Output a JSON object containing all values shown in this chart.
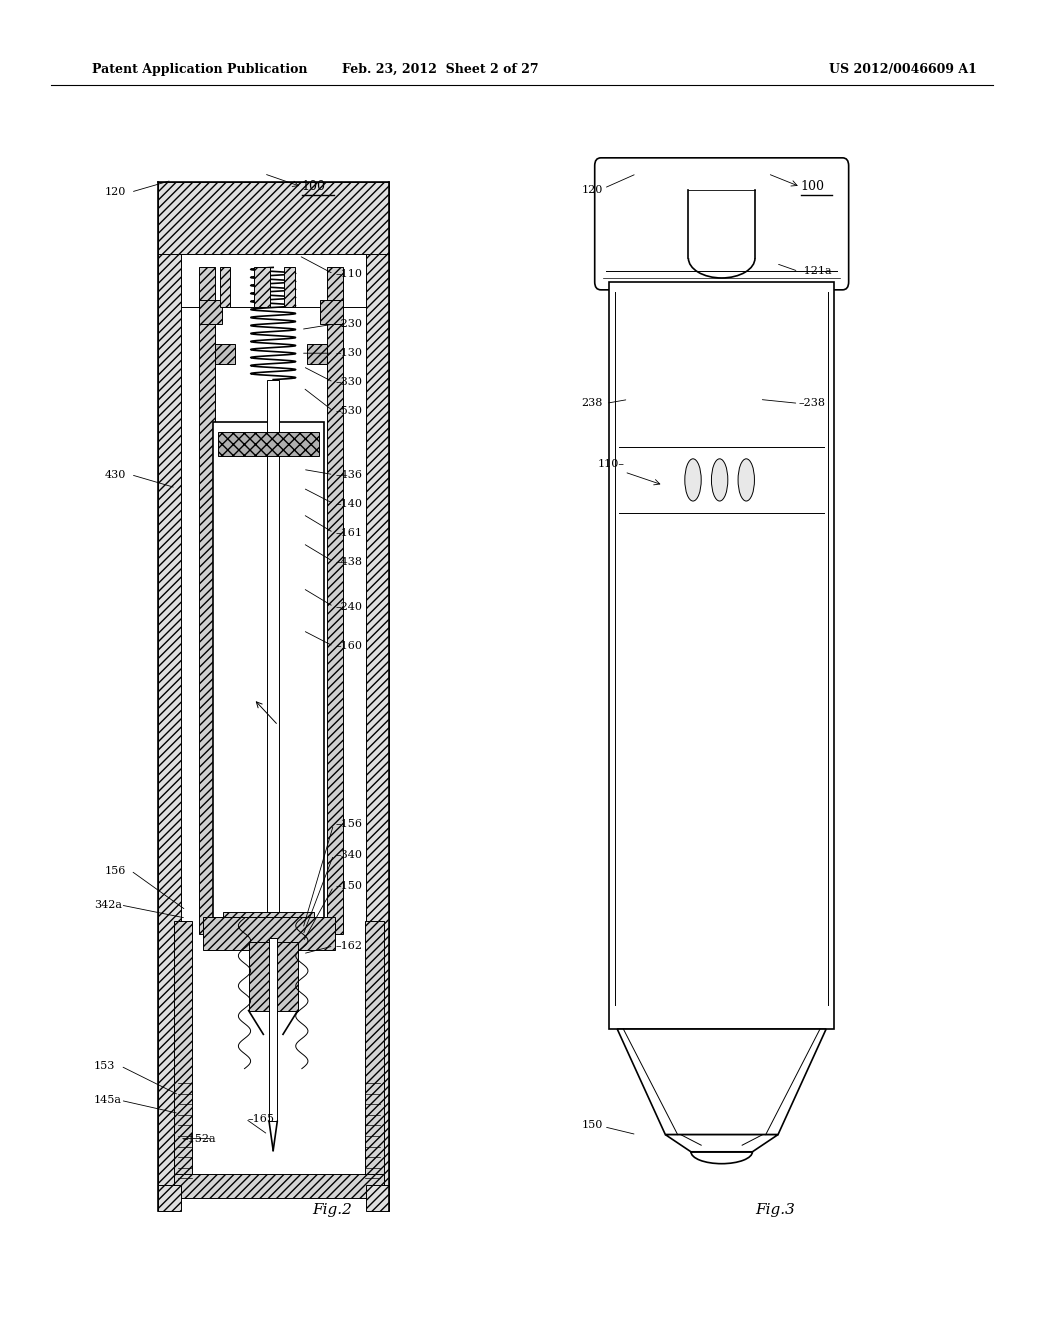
{
  "header_left": "Patent Application Publication",
  "header_mid": "Feb. 23, 2012  Sheet 2 of 27",
  "header_right": "US 2012/0046609 A1",
  "fig2_label": "Fig.2",
  "fig3_label": "Fig.3",
  "bg_color": "#ffffff",
  "line_color": "#000000"
}
